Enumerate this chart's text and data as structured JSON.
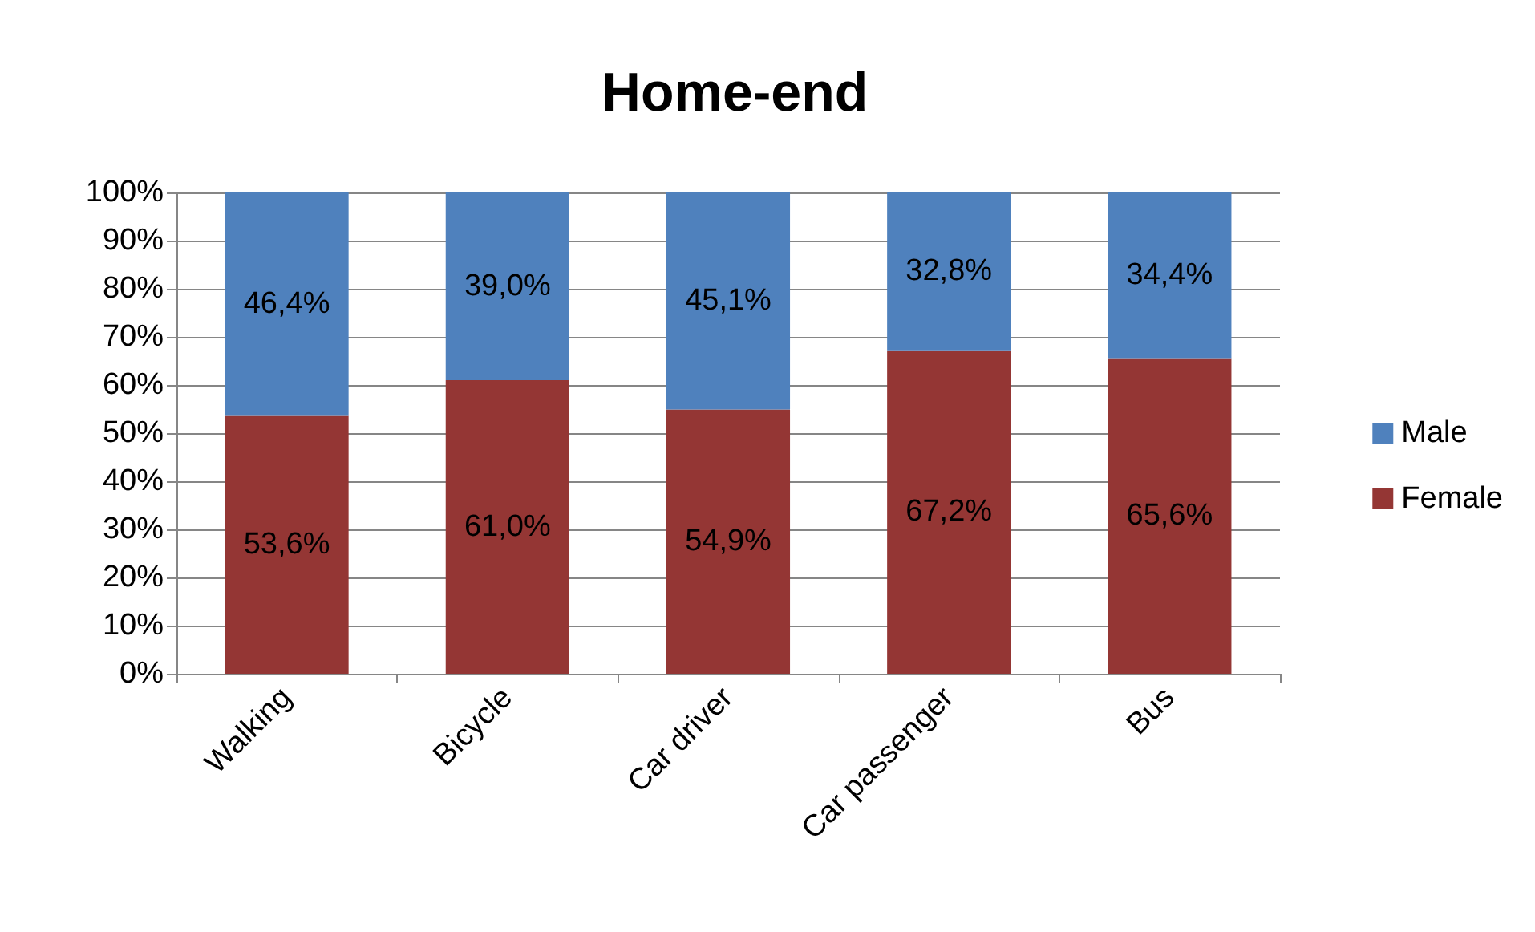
{
  "chart_data": {
    "type": "bar",
    "title": "Home-end",
    "stacked": true,
    "categories": [
      "Walking",
      "Bicycle",
      "Car driver",
      "Car passenger",
      "Bus"
    ],
    "series": [
      {
        "name": "Female",
        "color": "#943634",
        "values": [
          53.6,
          61.0,
          54.9,
          67.2,
          65.6
        ],
        "value_labels": [
          "53,6%",
          "61,0%",
          "54,9%",
          "67,2%",
          "65,6%"
        ]
      },
      {
        "name": "Male",
        "color": "#4f81bd",
        "values": [
          46.4,
          39.0,
          45.1,
          32.8,
          34.4
        ],
        "value_labels": [
          "46,4%",
          "39,0%",
          "45,1%",
          "32,8%",
          "34,4%"
        ]
      }
    ],
    "ylim": [
      0,
      100
    ],
    "yticks": [
      {
        "value": 0,
        "label": "0%"
      },
      {
        "value": 10,
        "label": "10%"
      },
      {
        "value": 20,
        "label": "20%"
      },
      {
        "value": 30,
        "label": "30%"
      },
      {
        "value": 40,
        "label": "40%"
      },
      {
        "value": 50,
        "label": "50%"
      },
      {
        "value": 60,
        "label": "60%"
      },
      {
        "value": 70,
        "label": "70%"
      },
      {
        "value": 80,
        "label": "80%"
      },
      {
        "value": 90,
        "label": "90%"
      },
      {
        "value": 100,
        "label": "100%"
      }
    ],
    "grid": "y",
    "legend": "right"
  }
}
